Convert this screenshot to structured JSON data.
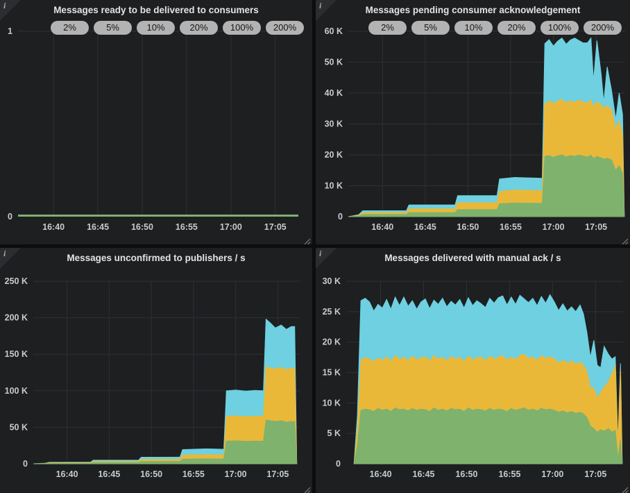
{
  "colors": {
    "green": "#7EB26D",
    "yellow": "#EAB839",
    "cyan": "#6ED0E0",
    "pill_bg": "#b3b3b3",
    "pill_text": "#161616",
    "panel_bg": "#1d1f21",
    "page_bg": "#0c0d0e"
  },
  "legend_pills": [
    "2%",
    "5%",
    "10%",
    "20%",
    "100%",
    "200%"
  ],
  "info_icon_glyph": "i",
  "chart_data": [
    {
      "type": "line",
      "title": "Messages ready to be delivered to consumers",
      "legend": [
        "2%",
        "5%",
        "10%",
        "20%",
        "100%",
        "200%"
      ],
      "x_ticks": [
        "16:40",
        "16:45",
        "16:50",
        "16:55",
        "17:00",
        "17:05"
      ],
      "x_tick_minutes": [
        4,
        9,
        14,
        19,
        24,
        29
      ],
      "x_range": [
        0,
        31.6
      ],
      "ylim": [
        0,
        1
      ],
      "y_ticks": [
        0,
        1
      ],
      "y_tick_labels": [
        "0",
        "1"
      ],
      "grid": true,
      "series": [
        {
          "name": "messages-ready",
          "color": "#7EB26D",
          "points": [
            [
              0,
              0
            ],
            [
              31.6,
              0
            ]
          ]
        }
      ]
    },
    {
      "type": "area",
      "stacked": true,
      "values_unit": "thousands",
      "title": "Messages pending consumer acknowledgement",
      "legend": [
        "2%",
        "5%",
        "10%",
        "20%",
        "100%",
        "200%"
      ],
      "x_ticks": [
        "16:40",
        "16:45",
        "16:50",
        "16:55",
        "17:00",
        "17:05"
      ],
      "x_tick_minutes": [
        4,
        9,
        14,
        19,
        24,
        29
      ],
      "x_range": [
        0,
        32.4
      ],
      "ylim": [
        0,
        60
      ],
      "y_ticks": [
        0,
        10,
        20,
        30,
        40,
        50,
        60
      ],
      "y_tick_labels": [
        "0",
        "10 K",
        "20 K",
        "30 K",
        "40 K",
        "50 K",
        "60 K"
      ],
      "grid": true,
      "note": "cum arrays are cumulative stacked tops (green bottom, yellow middle, cyan top), in thousands of messages",
      "t": [
        0,
        1.2,
        1.7,
        6.8,
        7.1,
        12.5,
        12.8,
        17.4,
        17.7,
        19.5,
        22.7,
        23.0,
        23.5,
        24.0,
        24.5,
        25.0,
        25.5,
        26.0,
        26.5,
        27.0,
        27.5,
        28.0,
        28.4,
        28.7,
        29.1,
        29.6,
        29.9,
        30.3,
        30.8,
        31.3,
        31.7,
        32.1,
        32.3
      ],
      "series": [
        {
          "name": "series-green",
          "color": "#7EB26D",
          "cum": [
            0,
            0.2,
            0.7,
            0.7,
            1.3,
            1.3,
            2.3,
            2.3,
            4.2,
            4.4,
            4.3,
            19.5,
            19.8,
            19.2,
            19.7,
            20.0,
            19.3,
            19.8,
            19.5,
            19.9,
            19.6,
            19.3,
            19.9,
            18.8,
            19.5,
            19.0,
            18.6,
            18.9,
            18.4,
            15.0,
            16.5,
            14.0,
            0
          ]
        },
        {
          "name": "series-yellow",
          "color": "#EAB839",
          "cum": [
            0,
            0.4,
            1.3,
            1.3,
            2.5,
            2.5,
            4.5,
            4.5,
            8.2,
            8.6,
            8.4,
            36.5,
            37.5,
            36.6,
            37.4,
            38.0,
            36.8,
            37.5,
            37.0,
            37.7,
            37.1,
            36.8,
            37.8,
            35.5,
            37.2,
            36.2,
            35.0,
            36.0,
            34.5,
            28.5,
            31.0,
            26.5,
            0
          ]
        },
        {
          "name": "series-cyan",
          "color": "#6ED0E0",
          "cum": [
            0,
            0.6,
            1.9,
            1.9,
            3.8,
            3.8,
            6.8,
            6.8,
            12.2,
            12.7,
            12.4,
            56.0,
            57.3,
            55.2,
            56.8,
            57.8,
            55.8,
            57.2,
            57.8,
            57.0,
            56.2,
            56.3,
            57.8,
            44.0,
            57.0,
            46.0,
            37.0,
            48.5,
            41.0,
            31.5,
            40.0,
            33.0,
            0
          ]
        }
      ]
    },
    {
      "type": "area",
      "stacked": true,
      "values_unit": "thousands",
      "title": "Messages unconfirmed to publishers / s",
      "legend": [],
      "x_ticks": [
        "16:40",
        "16:45",
        "16:50",
        "16:55",
        "17:00",
        "17:05"
      ],
      "x_tick_minutes": [
        4,
        9,
        14,
        19,
        24,
        29
      ],
      "x_range": [
        0,
        31.6
      ],
      "ylim": [
        0,
        250
      ],
      "y_ticks": [
        0,
        50,
        100,
        150,
        200,
        250
      ],
      "y_tick_labels": [
        "0",
        "50 K",
        "100 K",
        "150 K",
        "200 K",
        "250 K"
      ],
      "grid": true,
      "note": "cum arrays are cumulative stacked tops (green bottom, yellow middle, cyan top), in thousands per second",
      "t": [
        0,
        1.4,
        1.9,
        6.8,
        7.1,
        12.5,
        12.8,
        17.4,
        17.7,
        20.5,
        22.6,
        22.9,
        24.0,
        25.2,
        26.3,
        27.3,
        27.6,
        28.1,
        28.7,
        29.4,
        30.0,
        30.6,
        31.0,
        31.25
      ],
      "series": [
        {
          "name": "series-green",
          "color": "#7EB26D",
          "cum": [
            0,
            0.3,
            0.8,
            0.9,
            1.8,
            1.9,
            3.2,
            3.3,
            6.5,
            6.8,
            6.6,
            31,
            31.5,
            30.8,
            31.2,
            31,
            60,
            59,
            58,
            59,
            57,
            58,
            58,
            0
          ]
        },
        {
          "name": "series-yellow",
          "color": "#EAB839",
          "cum": [
            0,
            0.6,
            1.5,
            1.6,
            3.3,
            3.4,
            6.0,
            6.1,
            12,
            12.5,
            12.2,
            65,
            65.5,
            64.6,
            65.2,
            65,
            133,
            131,
            130,
            132,
            129,
            131,
            131,
            0
          ]
        },
        {
          "name": "series-cyan",
          "color": "#6ED0E0",
          "cum": [
            0,
            0.9,
            2.2,
            2.3,
            5.0,
            5.1,
            9.0,
            9.2,
            19.5,
            20.5,
            20,
            100,
            101,
            99.5,
            100.5,
            100,
            198,
            193,
            186,
            190,
            184,
            188,
            188,
            0
          ]
        }
      ]
    },
    {
      "type": "area",
      "stacked": true,
      "values_unit": "thousands",
      "title": "Messages delivered with manual ack / s",
      "legend": [],
      "x_ticks": [
        "16:40",
        "16:45",
        "16:50",
        "16:55",
        "17:00",
        "17:05"
      ],
      "x_tick_minutes": [
        4,
        9,
        14,
        19,
        24,
        29
      ],
      "x_range": [
        0,
        32.2
      ],
      "ylim": [
        0,
        30
      ],
      "y_ticks": [
        0,
        5,
        10,
        15,
        20,
        25,
        30
      ],
      "y_tick_labels": [
        "0",
        "5 K",
        "10 K",
        "15 K",
        "20 K",
        "25 K",
        "30 K"
      ],
      "grid": true,
      "note": "cum arrays are cumulative stacked tops (green bottom, yellow middle, cyan top), in thousands per second",
      "t": [
        0.9,
        1.3,
        1.7,
        2.2,
        2.7,
        3.2,
        3.7,
        4.2,
        4.7,
        5.2,
        5.7,
        6.2,
        6.7,
        7.2,
        7.7,
        8.2,
        8.7,
        9.2,
        9.7,
        10.2,
        10.7,
        11.2,
        11.7,
        12.2,
        12.7,
        13.2,
        13.7,
        14.2,
        14.7,
        15.2,
        15.7,
        16.2,
        16.7,
        17.2,
        17.7,
        18.2,
        18.7,
        19.2,
        19.7,
        20.2,
        20.7,
        21.2,
        21.7,
        22.2,
        22.7,
        23.2,
        23.7,
        24.2,
        24.7,
        25.2,
        25.7,
        26.2,
        26.7,
        27.2,
        27.6,
        28.0,
        28.4,
        28.8,
        29.2,
        29.6,
        30.0,
        30.5,
        30.9,
        31.3,
        31.6,
        31.9,
        32.1
      ],
      "series": [
        {
          "name": "series-green",
          "color": "#7EB26D",
          "cum": [
            0,
            3,
            8.8,
            9.0,
            8.9,
            8.6,
            9.1,
            8.8,
            9.0,
            8.6,
            9.2,
            8.9,
            9.0,
            8.7,
            9.1,
            8.8,
            9.0,
            8.9,
            8.6,
            9.2,
            8.8,
            9.0,
            8.7,
            9.1,
            8.9,
            9.0,
            8.6,
            9.2,
            8.8,
            9.0,
            8.9,
            8.7,
            9.1,
            8.8,
            9.0,
            8.9,
            8.6,
            9.1,
            8.8,
            9.0,
            9.2,
            8.8,
            9.0,
            8.7,
            9.1,
            8.9,
            9.0,
            8.8,
            8.5,
            8.7,
            8.4,
            8.6,
            8.3,
            8.5,
            8.2,
            7.6,
            6.2,
            5.8,
            5.2,
            5.6,
            5.4,
            5.8,
            5.2,
            5.5,
            0.8,
            4.0,
            0
          ]
        },
        {
          "name": "series-yellow",
          "color": "#EAB839",
          "cum": [
            0,
            5.5,
            17.0,
            17.5,
            17.2,
            16.8,
            17.4,
            17.0,
            17.6,
            16.8,
            17.8,
            17.2,
            17.5,
            17.0,
            17.7,
            17.1,
            17.4,
            17.6,
            16.9,
            17.8,
            17.2,
            17.5,
            17.0,
            17.6,
            17.2,
            17.5,
            16.8,
            17.7,
            17.1,
            17.4,
            17.6,
            16.9,
            17.7,
            17.2,
            17.5,
            17.8,
            17.0,
            17.6,
            17.1,
            17.8,
            18.0,
            17.3,
            17.6,
            17.0,
            17.8,
            17.3,
            17.6,
            17.2,
            16.6,
            17.0,
            16.5,
            16.9,
            16.4,
            16.7,
            16.2,
            15.2,
            12.5,
            12.4,
            10.8,
            11.8,
            12.6,
            13.5,
            14.8,
            16.2,
            3.0,
            15.5,
            0
          ]
        },
        {
          "name": "series-cyan",
          "color": "#6ED0E0",
          "cum": [
            0,
            8,
            26.8,
            27.2,
            26.6,
            25.1,
            26.2,
            25.6,
            27.0,
            25.4,
            27.4,
            26.0,
            27.4,
            25.9,
            26.8,
            25.4,
            26.6,
            27.1,
            25.5,
            26.9,
            26.2,
            27.2,
            25.8,
            26.7,
            26.1,
            27.0,
            25.6,
            27.3,
            26.0,
            26.8,
            26.3,
            25.7,
            27.2,
            26.4,
            27.3,
            27.6,
            26.1,
            27.4,
            26.2,
            27.7,
            27.1,
            26.5,
            27.2,
            26.0,
            27.5,
            26.4,
            27.8,
            26.6,
            25.2,
            26.3,
            25.1,
            25.8,
            25.0,
            26.1,
            24.6,
            21.5,
            17.5,
            20.3,
            16.2,
            15.8,
            19.3,
            18.0,
            17.2,
            17.6,
            3.5,
            16.5,
            0
          ]
        }
      ]
    }
  ]
}
